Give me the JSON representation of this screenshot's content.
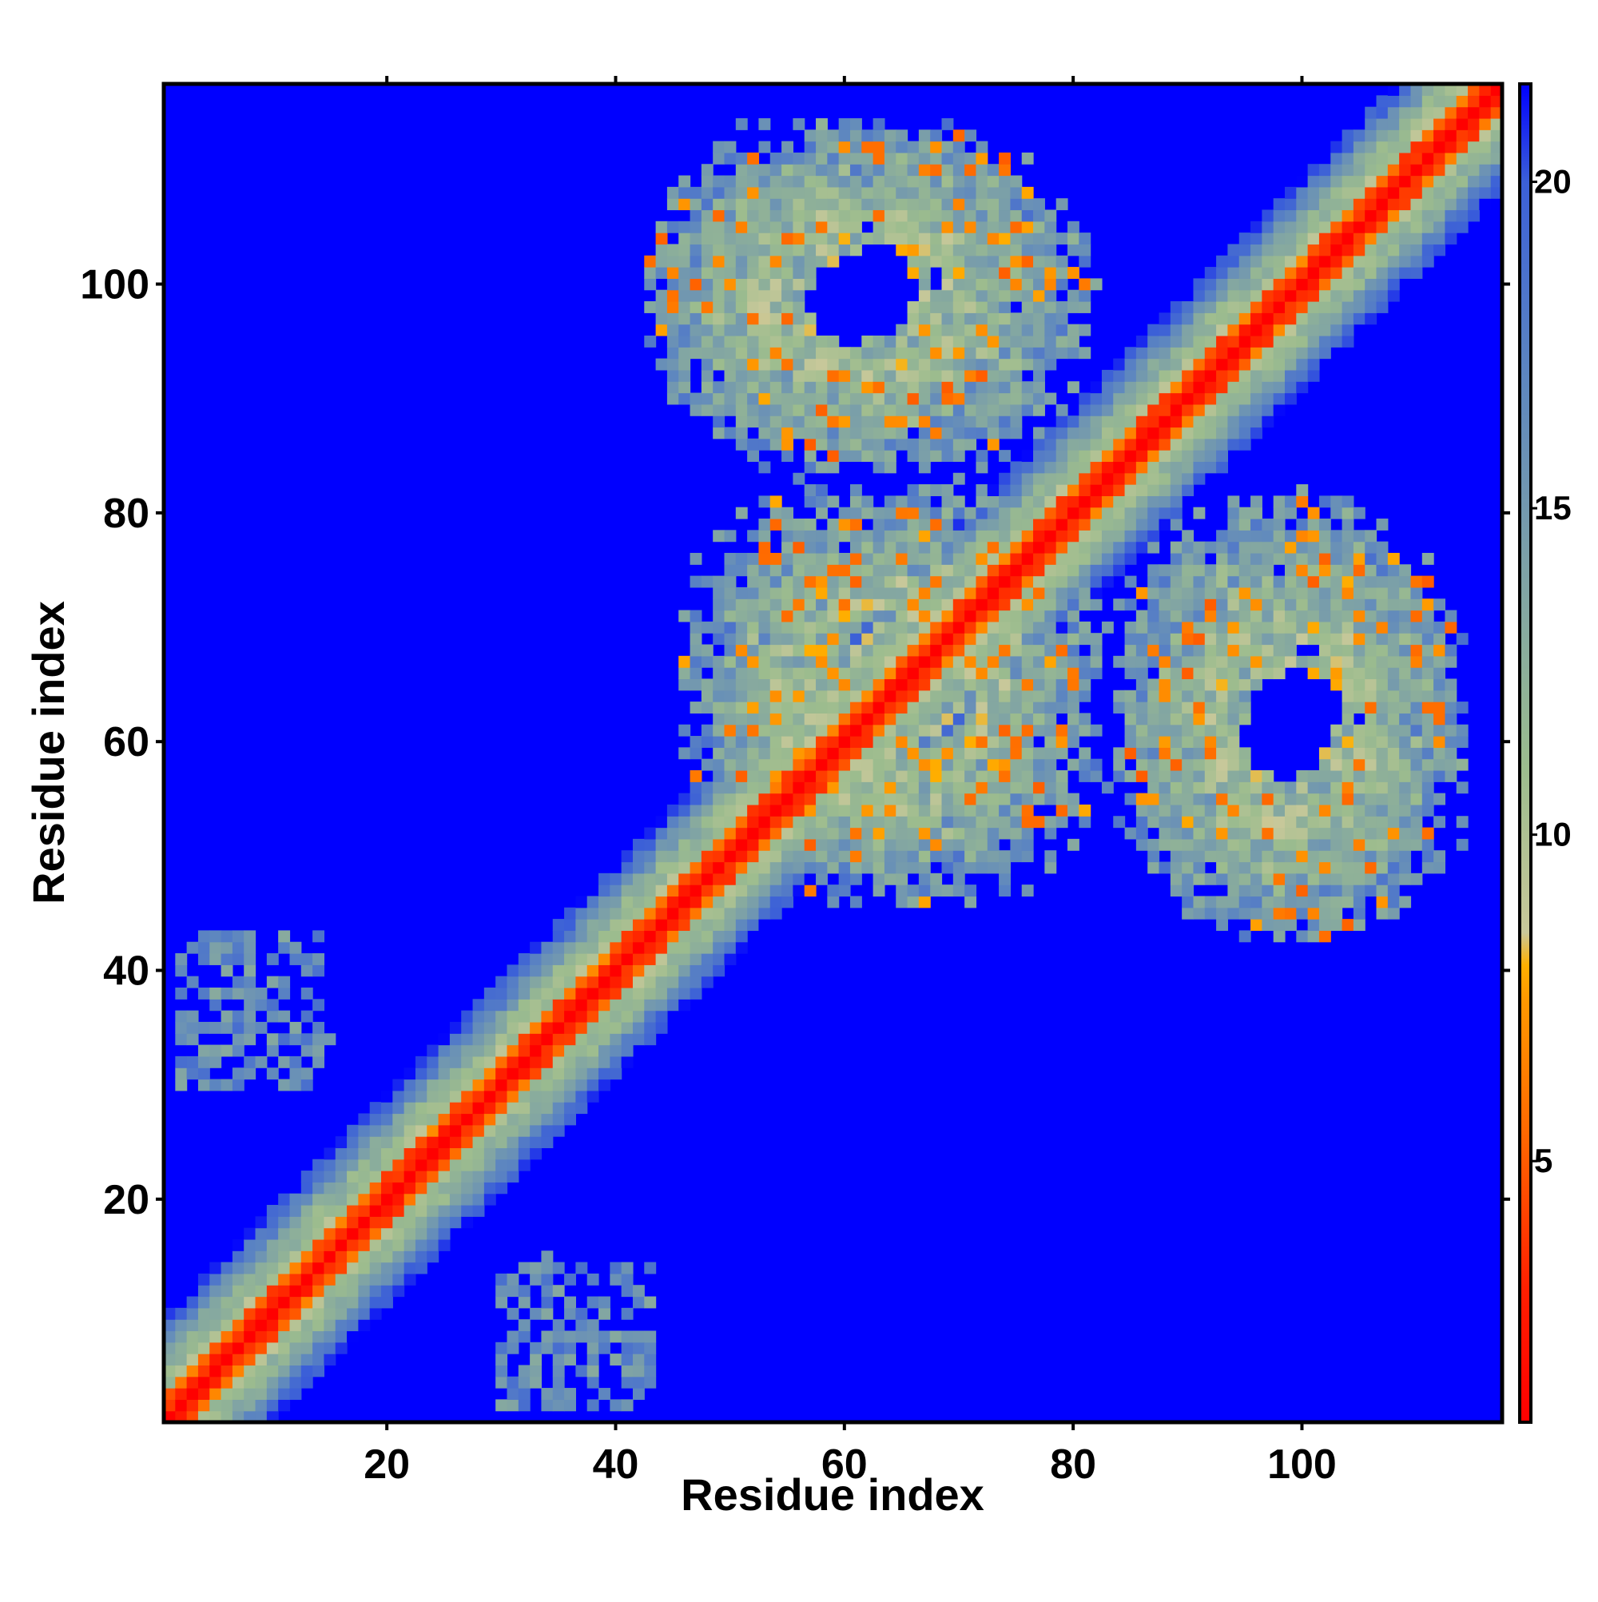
{
  "chart_data": {
    "type": "heatmap",
    "title": "",
    "xlabel": "Residue index",
    "ylabel": "Residue index",
    "n_residues": 117,
    "xlim": [
      0.5,
      117.5
    ],
    "ylim": [
      0.5,
      117.5
    ],
    "x_ticks": [
      20,
      40,
      60,
      80,
      100
    ],
    "y_ticks": [
      20,
      40,
      60,
      80,
      100
    ],
    "x_tick_labels": [
      "20",
      "40",
      "60",
      "80",
      "100"
    ],
    "y_tick_labels": [
      "20",
      "40",
      "60",
      "80",
      "100"
    ],
    "colorbar": {
      "range": [
        1,
        21.5
      ],
      "ticks": [
        5,
        10,
        15,
        20
      ],
      "tick_labels": [
        "5",
        "10",
        "15",
        "20"
      ],
      "color_stops": [
        {
          "value": 1.0,
          "color": "#ff0000"
        },
        {
          "value": 3.0,
          "color": "#ff1e00"
        },
        {
          "value": 5.5,
          "color": "#ff6a00"
        },
        {
          "value": 7.5,
          "color": "#ff9900"
        },
        {
          "value": 8.0,
          "color": "#ffb000"
        },
        {
          "value": 8.5,
          "color": "#c8c89a"
        },
        {
          "value": 11.0,
          "color": "#9cbc8e"
        },
        {
          "value": 14.0,
          "color": "#7ea2a6"
        },
        {
          "value": 17.0,
          "color": "#5d86c0"
        },
        {
          "value": 20.0,
          "color": "#3b5fd8"
        },
        {
          "value": 21.5,
          "color": "#0000ff"
        }
      ]
    },
    "background_value": 21.5,
    "structure_elements": [
      {
        "type": "diagonal_band",
        "description": "main diagonal contacts",
        "start": 1,
        "end": 117
      },
      {
        "type": "off_diagonal_cluster",
        "x_range": [
          43,
          78
        ],
        "y_range": [
          85,
          114
        ]
      },
      {
        "type": "off_diagonal_cluster",
        "x_range": [
          48,
          83
        ],
        "y_range": [
          46,
          80
        ]
      },
      {
        "type": "off_diagonal_cluster",
        "x_range": [
          84,
          113
        ],
        "y_range": [
          44,
          82
        ]
      },
      {
        "type": "sparse_patch",
        "x_range": [
          2,
          14
        ],
        "y_range": [
          30,
          43
        ]
      },
      {
        "type": "sparse_patch",
        "x_range": [
          30,
          43
        ],
        "y_range": [
          2,
          15
        ]
      }
    ]
  }
}
